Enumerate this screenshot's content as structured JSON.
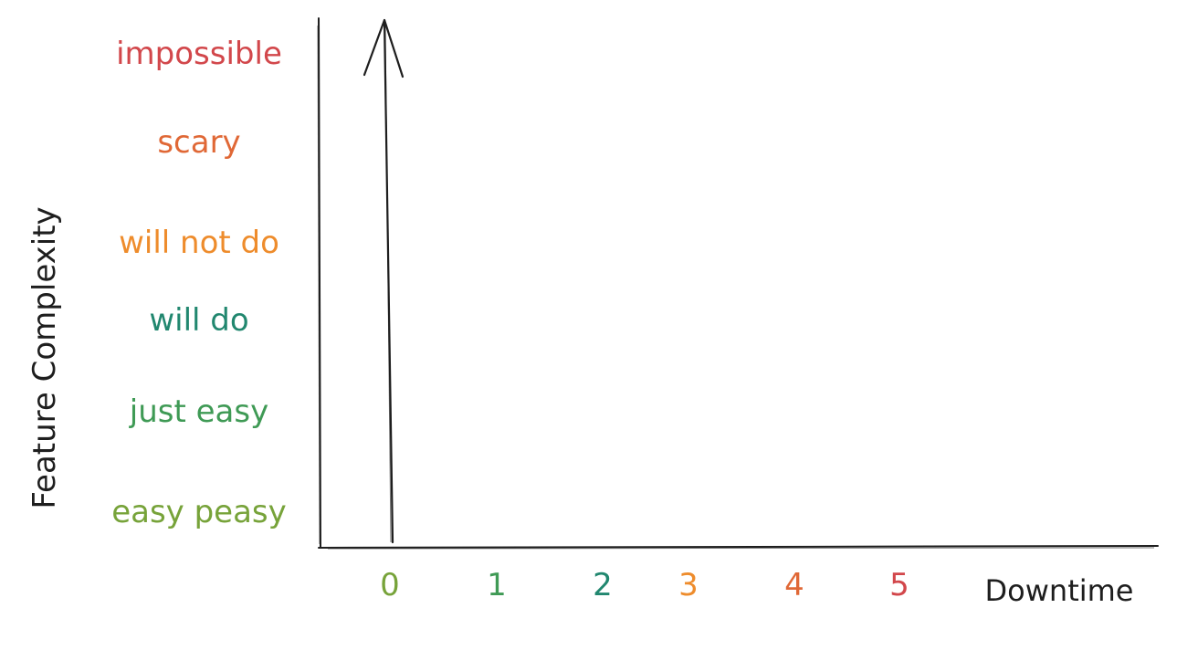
{
  "chart_data": {
    "type": "bar",
    "xlabel": "Downtime",
    "ylabel": "Feature Complexity",
    "x_categories": [
      "0",
      "1",
      "2",
      "3",
      "4",
      "5"
    ],
    "y_categories": [
      "easy peasy",
      "just easy",
      "will do",
      "will not do",
      "scary",
      "impossible"
    ],
    "bars": [
      {
        "x": "0",
        "y": "impossible"
      }
    ],
    "grid": false,
    "legend": "none"
  },
  "colors": {
    "axis": "#1e1e1e",
    "x_ticks": [
      "#77a33a",
      "#3f9a55",
      "#21876f",
      "#ee8c2c",
      "#e06836",
      "#d2474b"
    ],
    "y_ticks": [
      "#77a33a",
      "#3f9a55",
      "#21876f",
      "#ee8c2c",
      "#e06836",
      "#d2474b"
    ]
  }
}
